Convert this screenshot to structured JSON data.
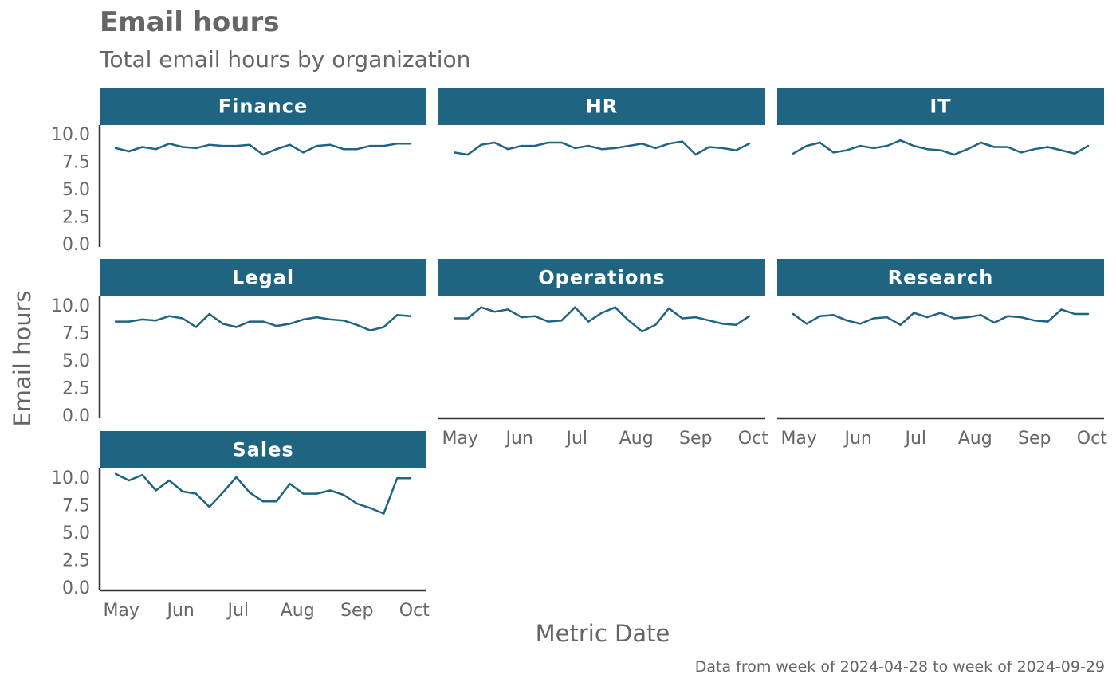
{
  "chart_data": {
    "type": "line",
    "title": "Email hours",
    "subtitle": "Total email hours by organization",
    "xlabel": "Metric Date",
    "ylabel": "Email hours",
    "caption": "Data from week of 2024-04-28 to week of 2024-09-29",
    "ylim": [
      0,
      10.5
    ],
    "y_ticks": [
      "0.0",
      "2.5",
      "5.0",
      "7.5",
      "10.0"
    ],
    "x_ticks": [
      "May",
      "Jun",
      "Jul",
      "Aug",
      "Sep",
      "Oct"
    ],
    "x_tick_dates": [
      "2024-05-01",
      "2024-06-01",
      "2024-07-01",
      "2024-08-01",
      "2024-09-01",
      "2024-10-01"
    ],
    "xlim": [
      "2024-04-28",
      "2024-09-29"
    ],
    "x": [
      "2024-04-28",
      "2024-05-05",
      "2024-05-12",
      "2024-05-19",
      "2024-05-26",
      "2024-06-02",
      "2024-06-09",
      "2024-06-16",
      "2024-06-23",
      "2024-06-30",
      "2024-07-07",
      "2024-07-14",
      "2024-07-21",
      "2024-07-28",
      "2024-08-04",
      "2024-08-11",
      "2024-08-18",
      "2024-08-25",
      "2024-09-01",
      "2024-09-08",
      "2024-09-15",
      "2024-09-22",
      "2024-09-29"
    ],
    "line_color": "#1f6480",
    "strip_color": "#1f6480",
    "series": [
      {
        "name": "Finance",
        "values": [
          8.7,
          8.4,
          8.8,
          8.6,
          9.1,
          8.8,
          8.7,
          9.0,
          8.9,
          8.9,
          9.0,
          8.1,
          8.6,
          9.0,
          8.3,
          8.9,
          9.0,
          8.6,
          8.6,
          8.9,
          8.9,
          9.1,
          9.1
        ]
      },
      {
        "name": "HR",
        "values": [
          8.3,
          8.1,
          9.0,
          9.2,
          8.6,
          8.9,
          8.9,
          9.2,
          9.2,
          8.7,
          8.9,
          8.6,
          8.7,
          8.9,
          9.1,
          8.7,
          9.1,
          9.3,
          8.1,
          8.8,
          8.7,
          8.5,
          9.1
        ]
      },
      {
        "name": "IT",
        "values": [
          8.2,
          8.9,
          9.2,
          8.3,
          8.5,
          8.9,
          8.7,
          8.9,
          9.4,
          8.9,
          8.6,
          8.5,
          8.1,
          8.6,
          9.2,
          8.8,
          8.8,
          8.3,
          8.6,
          8.8,
          8.5,
          8.2,
          8.9
        ]
      },
      {
        "name": "Legal",
        "values": [
          8.5,
          8.5,
          8.7,
          8.6,
          9.0,
          8.8,
          8.0,
          9.2,
          8.3,
          8.0,
          8.5,
          8.5,
          8.1,
          8.3,
          8.7,
          8.9,
          8.7,
          8.6,
          8.2,
          7.7,
          8.0,
          9.1,
          9.0
        ]
      },
      {
        "name": "Operations",
        "values": [
          8.8,
          8.8,
          9.8,
          9.4,
          9.6,
          8.9,
          9.0,
          8.5,
          8.6,
          9.8,
          8.5,
          9.3,
          9.8,
          8.6,
          7.6,
          8.2,
          9.7,
          8.8,
          8.9,
          8.6,
          8.3,
          8.2,
          9.0
        ]
      },
      {
        "name": "Research",
        "values": [
          9.2,
          8.3,
          9.0,
          9.1,
          8.6,
          8.3,
          8.8,
          8.9,
          8.2,
          9.3,
          8.9,
          9.3,
          8.8,
          8.9,
          9.1,
          8.4,
          9.0,
          8.9,
          8.6,
          8.5,
          9.6,
          9.2,
          9.2
        ]
      },
      {
        "name": "Sales",
        "values": [
          10.3,
          9.7,
          10.2,
          8.8,
          9.7,
          8.7,
          8.5,
          7.3,
          8.6,
          10.0,
          8.6,
          7.8,
          7.8,
          9.4,
          8.5,
          8.5,
          8.8,
          8.4,
          7.6,
          7.2,
          6.7,
          9.9,
          9.9
        ]
      }
    ]
  }
}
